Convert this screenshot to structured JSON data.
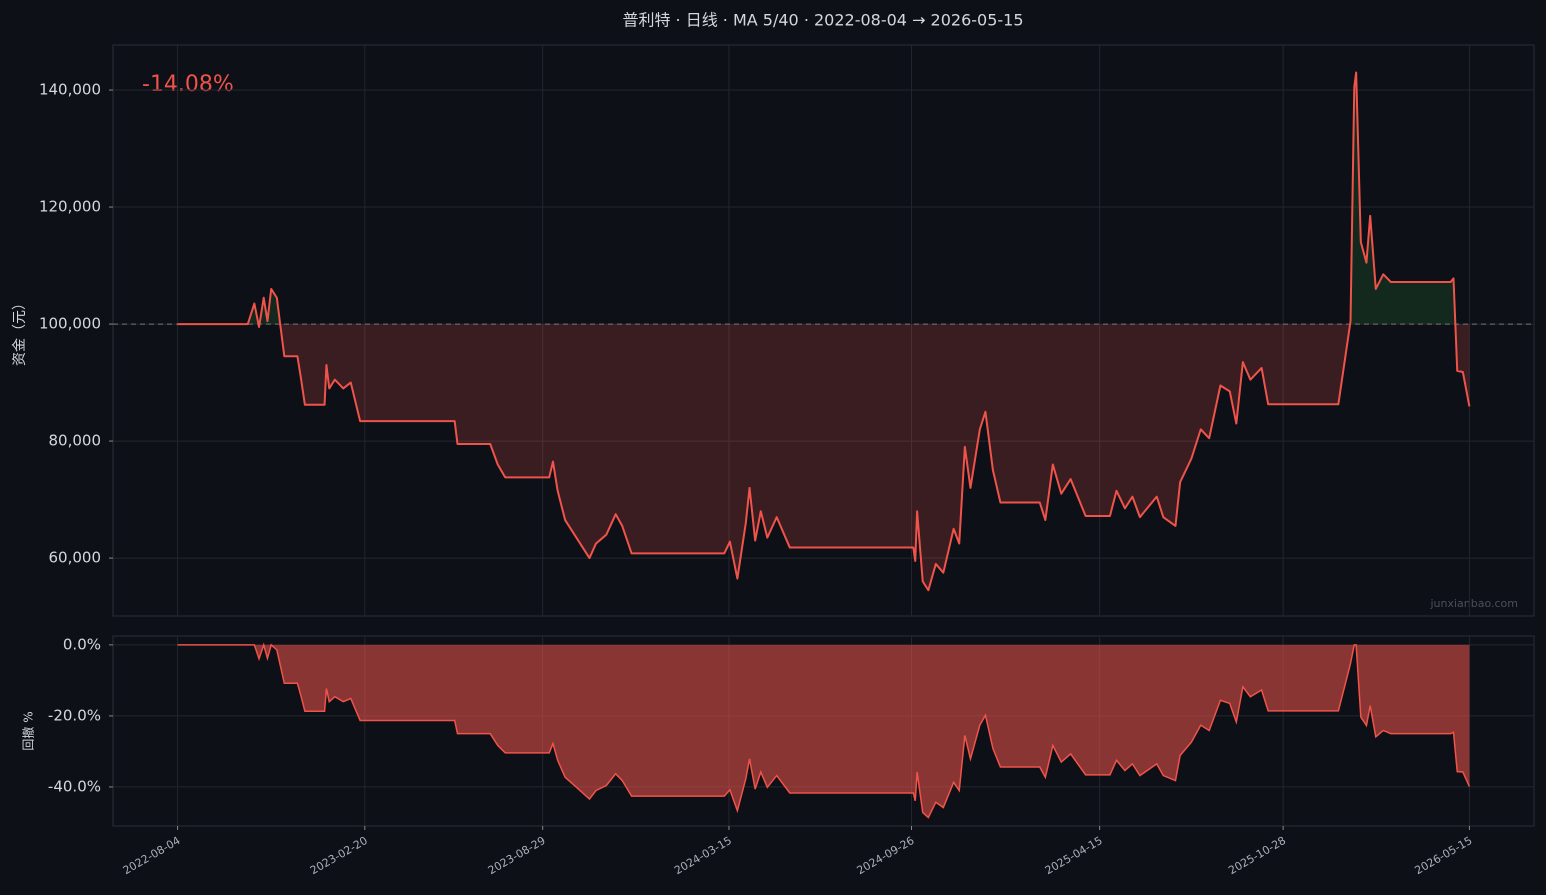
{
  "chart_data": [
    {
      "type": "line",
      "title": "普利特 · 日线 · MA 5/40 · 2022-08-04 → 2026-05-15",
      "y_label": "资金（元）",
      "annotation": "-14.08%",
      "watermark": "junxianbao.com",
      "baseline": 100000,
      "grid": true,
      "x": [
        "2022-08-04",
        "2022-10-18",
        "2022-10-25",
        "2022-10-30",
        "2022-11-04",
        "2022-11-08",
        "2022-11-12",
        "2022-11-18",
        "2022-11-22",
        "2022-11-26",
        "2022-12-10",
        "2022-12-14",
        "2022-12-18",
        "2023-01-08",
        "2023-01-10",
        "2023-01-13",
        "2023-01-19",
        "2023-01-28",
        "2023-02-05",
        "2023-02-15",
        "2023-05-27",
        "2023-05-30",
        "2023-07-04",
        "2023-07-12",
        "2023-07-20",
        "2023-09-05",
        "2023-09-09",
        "2023-09-14",
        "2023-09-22",
        "2023-10-02",
        "2023-10-18",
        "2023-10-25",
        "2023-11-05",
        "2023-11-15",
        "2023-11-22",
        "2023-12-02",
        "2024-03-10",
        "2024-03-16",
        "2024-03-24",
        "2024-04-02",
        "2024-04-06",
        "2024-04-12",
        "2024-04-18",
        "2024-04-25",
        "2024-05-05",
        "2024-05-19",
        "2024-09-28",
        "2024-09-30",
        "2024-10-02",
        "2024-10-08",
        "2024-10-14",
        "2024-10-22",
        "2024-10-30",
        "2024-11-10",
        "2024-11-16",
        "2024-11-22",
        "2024-11-28",
        "2024-12-08",
        "2024-12-14",
        "2024-12-22",
        "2024-12-30",
        "2025-02-10",
        "2025-02-16",
        "2025-02-24",
        "2025-03-05",
        "2025-03-15",
        "2025-03-31",
        "2025-04-26",
        "2025-05-03",
        "2025-05-12",
        "2025-05-20",
        "2025-05-28",
        "2025-06-15",
        "2025-06-22",
        "2025-07-05",
        "2025-07-10",
        "2025-07-22",
        "2025-08-01",
        "2025-08-10",
        "2025-08-22",
        "2025-09-01",
        "2025-09-08",
        "2025-09-15",
        "2025-09-23",
        "2025-10-05",
        "2025-10-12",
        "2025-12-26",
        "2026-01-03",
        "2026-01-08",
        "2026-01-12",
        "2026-01-14",
        "2026-01-19",
        "2026-01-25",
        "2026-01-29",
        "2026-02-04",
        "2026-02-12",
        "2026-02-20",
        "2026-04-25",
        "2026-04-28",
        "2026-05-02",
        "2026-05-08",
        "2026-05-15"
      ],
      "series": [
        {
          "name": "资金",
          "color": "#f0534a",
          "values": [
            100000,
            100000,
            103500,
            99500,
            104500,
            100500,
            106000,
            104500,
            99500,
            94500,
            94500,
            90500,
            86200,
            86200,
            93000,
            89000,
            90500,
            89000,
            90000,
            83400,
            83400,
            79500,
            79500,
            76000,
            73800,
            73800,
            76500,
            71500,
            66500,
            64000,
            60000,
            62500,
            64000,
            67500,
            65500,
            60800,
            60800,
            62800,
            56500,
            66000,
            72000,
            63000,
            68000,
            63500,
            67000,
            61800,
            61800,
            59500,
            68000,
            56000,
            54500,
            59000,
            57500,
            65000,
            62500,
            79000,
            72000,
            82000,
            85000,
            75000,
            69500,
            69500,
            66500,
            76000,
            71000,
            73500,
            67200,
            67200,
            71500,
            68500,
            70500,
            67000,
            70500,
            67000,
            65500,
            73000,
            77000,
            82000,
            80500,
            89500,
            88500,
            83000,
            93500,
            90500,
            92500,
            86300,
            86300,
            95000,
            100500,
            140500,
            143000,
            114000,
            110500,
            118500,
            106000,
            108500,
            107200,
            107200,
            107800,
            92000,
            91800,
            85920
          ]
        }
      ],
      "xlim": [
        "2022-05-27",
        "2026-07-23"
      ],
      "ylim": [
        50100,
        147700
      ],
      "yticks": [
        {
          "value": 60000,
          "label": "60,000"
        },
        {
          "value": 80000,
          "label": "80,000"
        },
        {
          "value": 100000,
          "label": "100,000"
        },
        {
          "value": 120000,
          "label": "120,000"
        },
        {
          "value": 140000,
          "label": "140,000"
        }
      ]
    },
    {
      "type": "area",
      "y_label": "回撤 %",
      "grid": true,
      "x": [
        "2022-08-04",
        "2022-10-18",
        "2022-10-25",
        "2022-10-30",
        "2022-11-04",
        "2022-11-08",
        "2022-11-12",
        "2022-11-18",
        "2022-11-22",
        "2022-11-26",
        "2022-12-10",
        "2022-12-14",
        "2022-12-18",
        "2023-01-08",
        "2023-01-10",
        "2023-01-13",
        "2023-01-19",
        "2023-01-28",
        "2023-02-05",
        "2023-02-15",
        "2023-05-27",
        "2023-05-30",
        "2023-07-04",
        "2023-07-12",
        "2023-07-20",
        "2023-09-05",
        "2023-09-09",
        "2023-09-14",
        "2023-09-22",
        "2023-10-02",
        "2023-10-18",
        "2023-10-25",
        "2023-11-05",
        "2023-11-15",
        "2023-11-22",
        "2023-12-02",
        "2024-03-10",
        "2024-03-16",
        "2024-03-24",
        "2024-04-02",
        "2024-04-06",
        "2024-04-12",
        "2024-04-18",
        "2024-04-25",
        "2024-05-05",
        "2024-05-19",
        "2024-09-28",
        "2024-09-30",
        "2024-10-02",
        "2024-10-08",
        "2024-10-14",
        "2024-10-22",
        "2024-10-30",
        "2024-11-10",
        "2024-11-16",
        "2024-11-22",
        "2024-11-28",
        "2024-12-08",
        "2024-12-14",
        "2024-12-22",
        "2024-12-30",
        "2025-02-10",
        "2025-02-16",
        "2025-02-24",
        "2025-03-05",
        "2025-03-15",
        "2025-03-31",
        "2025-04-26",
        "2025-05-03",
        "2025-05-12",
        "2025-05-20",
        "2025-05-28",
        "2025-06-15",
        "2025-06-22",
        "2025-07-05",
        "2025-07-10",
        "2025-07-22",
        "2025-08-01",
        "2025-08-10",
        "2025-08-22",
        "2025-09-01",
        "2025-09-08",
        "2025-09-15",
        "2025-09-23",
        "2025-10-05",
        "2025-10-12",
        "2025-12-26",
        "2026-01-03",
        "2026-01-08",
        "2026-01-12",
        "2026-01-14",
        "2026-01-19",
        "2026-01-25",
        "2026-01-29",
        "2026-02-04",
        "2026-02-12",
        "2026-02-20",
        "2026-04-25",
        "2026-04-28",
        "2026-05-02",
        "2026-05-08",
        "2026-05-15"
      ],
      "series": [
        {
          "name": "回撤",
          "color": "#f0534a",
          "values": [
            0,
            0,
            0,
            -3.9,
            0,
            -3.8,
            0,
            -1.4,
            -6.1,
            -10.8,
            -10.8,
            -14.6,
            -18.7,
            -18.7,
            -12.3,
            -16.0,
            -14.6,
            -16.0,
            -15.1,
            -21.3,
            -21.3,
            -25.0,
            -25.0,
            -28.3,
            -30.4,
            -30.4,
            -27.8,
            -32.5,
            -37.3,
            -39.6,
            -43.4,
            -41.0,
            -39.6,
            -36.3,
            -38.2,
            -42.6,
            -42.6,
            -40.8,
            -46.7,
            -37.7,
            -32.1,
            -40.6,
            -35.8,
            -40.1,
            -36.8,
            -41.7,
            -41.7,
            -43.9,
            -35.8,
            -47.2,
            -48.6,
            -44.3,
            -45.8,
            -38.7,
            -41.0,
            -25.5,
            -32.1,
            -22.6,
            -19.8,
            -29.2,
            -34.4,
            -34.4,
            -37.3,
            -28.3,
            -33.0,
            -30.7,
            -36.6,
            -36.6,
            -32.5,
            -35.4,
            -33.5,
            -36.8,
            -33.5,
            -36.8,
            -38.2,
            -31.1,
            -27.4,
            -22.6,
            -24.1,
            -15.6,
            -16.5,
            -21.7,
            -11.8,
            -14.6,
            -12.7,
            -18.6,
            -18.6,
            -10.4,
            -5.2,
            0,
            0,
            -20.3,
            -22.7,
            -17.1,
            -25.9,
            -24.1,
            -25.0,
            -25.0,
            -24.6,
            -35.7,
            -35.8,
            -39.9
          ]
        }
      ],
      "xlim": [
        "2022-05-27",
        "2026-07-23"
      ],
      "ylim": [
        -51,
        2.5
      ],
      "xticks": [
        "2022-08-04",
        "2023-02-20",
        "2023-08-29",
        "2024-03-15",
        "2024-09-26",
        "2025-04-15",
        "2025-10-28",
        "2026-05-15"
      ],
      "yticks": [
        {
          "value": 0,
          "label": "0.0%"
        },
        {
          "value": -20,
          "label": "-20.0%"
        },
        {
          "value": -40,
          "label": "-40.0%"
        }
      ]
    }
  ]
}
